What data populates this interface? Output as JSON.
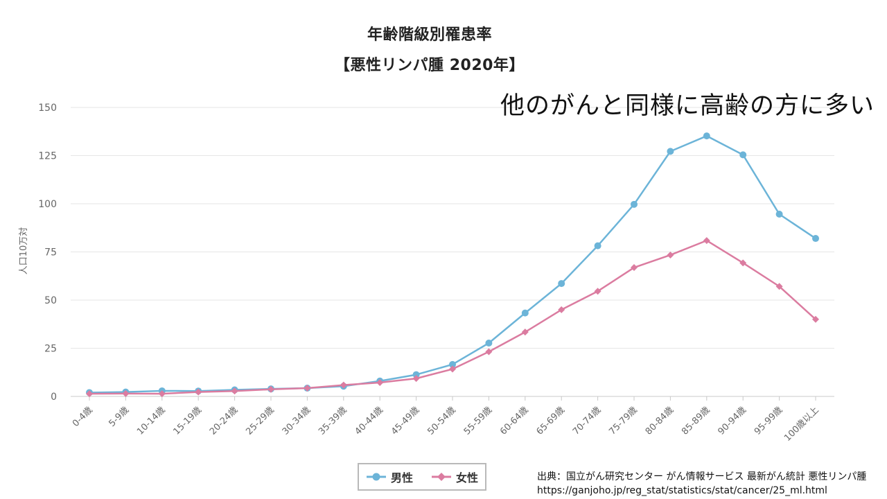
{
  "annotation": "他のがんと同様に高齢の方に多い",
  "source": {
    "line1": "出典：国立がん研究センター がん情報サービス 最新がん統計 悪性リンパ腫",
    "line2": "https://ganjoho.jp/reg_stat/statistics/stat/cancer/25_ml.html"
  },
  "colors": {
    "male": "#6cb4d8",
    "female": "#db7ca0",
    "grid": "#e6e6e6",
    "tick_text": "#666666"
  },
  "chart_data": {
    "type": "line",
    "title": "年齢階級別罹患率",
    "subtitle": "【悪性リンパ腫 2020年】",
    "ylabel": "人口10万対",
    "xlabel": "",
    "ylim": [
      0,
      150
    ],
    "yticks": [
      0,
      25,
      50,
      75,
      100,
      125,
      150
    ],
    "grid": true,
    "legend_position": "bottom-center",
    "categories": [
      "0-4歳",
      "5-9歳",
      "10-14歳",
      "15-19歳",
      "20-24歳",
      "25-29歳",
      "30-34歳",
      "35-39歳",
      "40-44歳",
      "45-49歳",
      "50-54歳",
      "55-59歳",
      "60-64歳",
      "65-69歳",
      "70-74歳",
      "75-79歳",
      "80-84歳",
      "85-89歳",
      "90-94歳",
      "95-99歳",
      "100歳以上"
    ],
    "series": [
      {
        "name": "男性",
        "marker": "circle",
        "values": [
          2.0,
          2.3,
          2.9,
          2.8,
          3.4,
          3.9,
          4.3,
          5.3,
          8.0,
          11.3,
          16.6,
          27.7,
          43.3,
          58.6,
          78.2,
          99.7,
          127.2,
          135.2,
          125.4,
          94.6,
          82.0
        ]
      },
      {
        "name": "女性",
        "marker": "diamond",
        "values": [
          1.4,
          1.5,
          1.4,
          2.3,
          2.8,
          3.7,
          4.3,
          5.9,
          7.2,
          9.3,
          14.2,
          23.2,
          33.4,
          45.0,
          54.6,
          66.9,
          73.4,
          80.9,
          69.3,
          57.1,
          40.0
        ]
      }
    ]
  }
}
